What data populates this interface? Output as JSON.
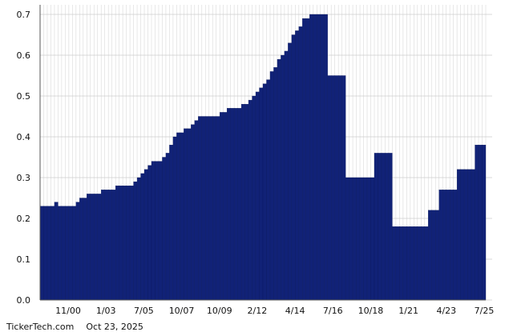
{
  "chart_data": {
    "type": "bar",
    "grid": true,
    "ylim": [
      0,
      0.7
    ],
    "yticks": [
      "0.0",
      "0.1",
      "0.2",
      "0.3",
      "0.4",
      "0.5",
      "0.6",
      "0.7"
    ],
    "xtick_labels": [
      "11/00",
      "1/03",
      "7/05",
      "10/07",
      "10/09",
      "2/12",
      "4/14",
      "7/16",
      "10/18",
      "1/21",
      "4/23",
      "7/25"
    ],
    "bar_color": "#112277",
    "values": [
      0.23,
      0.23,
      0.23,
      0.23,
      0.24,
      0.23,
      0.23,
      0.23,
      0.23,
      0.23,
      0.24,
      0.25,
      0.25,
      0.26,
      0.26,
      0.26,
      0.26,
      0.27,
      0.27,
      0.27,
      0.27,
      0.28,
      0.28,
      0.28,
      0.28,
      0.28,
      0.29,
      0.3,
      0.31,
      0.32,
      0.33,
      0.34,
      0.34,
      0.34,
      0.35,
      0.36,
      0.38,
      0.4,
      0.41,
      0.41,
      0.42,
      0.42,
      0.43,
      0.44,
      0.45,
      0.45,
      0.45,
      0.45,
      0.45,
      0.45,
      0.46,
      0.46,
      0.47,
      0.47,
      0.47,
      0.47,
      0.48,
      0.48,
      0.49,
      0.5,
      0.51,
      0.52,
      0.53,
      0.54,
      0.56,
      0.57,
      0.59,
      0.6,
      0.61,
      0.63,
      0.65,
      0.66,
      0.67,
      0.69,
      0.69,
      0.7,
      0.7,
      0.7,
      0.7,
      0.7,
      0.55,
      0.55,
      0.55,
      0.55,
      0.55,
      0.3,
      0.3,
      0.3,
      0.3,
      0.3,
      0.3,
      0.3,
      0.3,
      0.36,
      0.36,
      0.36,
      0.36,
      0.36,
      0.18,
      0.18,
      0.18,
      0.18,
      0.18,
      0.18,
      0.18,
      0.18,
      0.18,
      0.18,
      0.22,
      0.22,
      0.22,
      0.27,
      0.27,
      0.27,
      0.27,
      0.27,
      0.32,
      0.32,
      0.32,
      0.32,
      0.32,
      0.38,
      0.38,
      0.38
    ]
  },
  "footer": {
    "source": "TickerTech.com",
    "date": "Oct 23, 2025"
  }
}
